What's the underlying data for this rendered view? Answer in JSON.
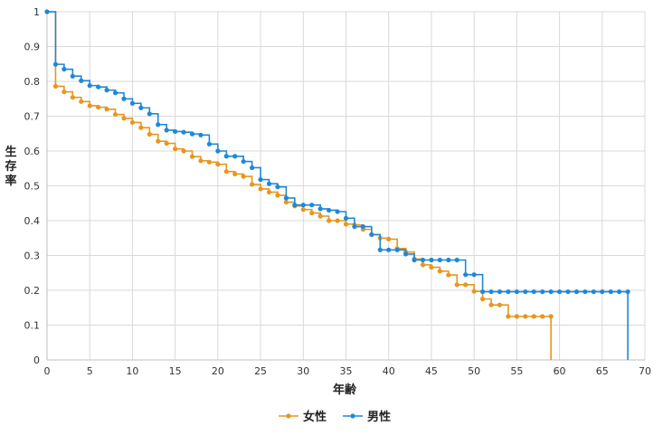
{
  "chart_data": {
    "type": "line",
    "title": "",
    "xlabel": "年齢",
    "ylabel": "生存率",
    "xlim": [
      0,
      70
    ],
    "ylim": [
      0,
      1
    ],
    "x_ticks": [
      "0",
      "5",
      "10",
      "15",
      "20",
      "25",
      "30",
      "35",
      "40",
      "45",
      "50",
      "55",
      "60",
      "65",
      "70"
    ],
    "y_ticks": [
      "0",
      "0.1",
      "0.2",
      "0.3",
      "0.4",
      "0.5",
      "0.6",
      "0.7",
      "0.8",
      "0.9",
      "1"
    ],
    "grid": true,
    "legend_position": "bottom",
    "series": [
      {
        "name": "女性",
        "color": "#E8961E",
        "x": [
          0,
          1,
          2,
          3,
          4,
          5,
          6,
          7,
          8,
          9,
          10,
          11,
          12,
          13,
          14,
          15,
          16,
          17,
          18,
          19,
          20,
          21,
          22,
          23,
          24,
          25,
          26,
          27,
          28,
          29,
          30,
          31,
          32,
          33,
          34,
          35,
          36,
          37,
          38,
          39,
          40,
          41,
          42,
          43,
          44,
          45,
          46,
          47,
          48,
          49,
          50,
          51,
          52,
          53,
          54,
          55,
          56,
          57,
          58,
          59
        ],
        "y": [
          1,
          0.786,
          0.77,
          0.754,
          0.742,
          0.73,
          0.726,
          0.72,
          0.705,
          0.694,
          0.682,
          0.667,
          0.648,
          0.628,
          0.622,
          0.606,
          0.6,
          0.584,
          0.572,
          0.568,
          0.562,
          0.541,
          0.534,
          0.527,
          0.504,
          0.491,
          0.482,
          0.473,
          0.453,
          0.442,
          0.432,
          0.422,
          0.413,
          0.4,
          0.4,
          0.39,
          0.388,
          0.375,
          0.36,
          0.35,
          0.347,
          0.32,
          0.31,
          0.29,
          0.273,
          0.266,
          0.255,
          0.244,
          0.216,
          0.216,
          0.197,
          0.175,
          0.158,
          0.158,
          0.125,
          0.125,
          0.125,
          0.125,
          0.125,
          0.125
        ],
        "drop_to_zero_at": 59
      },
      {
        "name": "男性",
        "color": "#1E88D8",
        "x": [
          0,
          1,
          2,
          3,
          4,
          5,
          6,
          7,
          8,
          9,
          10,
          11,
          12,
          13,
          14,
          15,
          16,
          17,
          18,
          19,
          20,
          21,
          22,
          23,
          24,
          25,
          26,
          27,
          28,
          29,
          30,
          31,
          32,
          33,
          34,
          35,
          36,
          37,
          38,
          39,
          40,
          41,
          42,
          43,
          44,
          45,
          46,
          47,
          48,
          49,
          50,
          51,
          52,
          53,
          54,
          55,
          56,
          57,
          58,
          59,
          60,
          61,
          62,
          63,
          64,
          65,
          66,
          67,
          68
        ],
        "y": [
          1,
          0.849,
          0.835,
          0.815,
          0.802,
          0.788,
          0.784,
          0.775,
          0.767,
          0.75,
          0.737,
          0.724,
          0.707,
          0.676,
          0.66,
          0.656,
          0.654,
          0.649,
          0.646,
          0.62,
          0.6,
          0.585,
          0.585,
          0.57,
          0.552,
          0.518,
          0.506,
          0.497,
          0.465,
          0.445,
          0.445,
          0.445,
          0.434,
          0.43,
          0.426,
          0.407,
          0.383,
          0.383,
          0.36,
          0.316,
          0.316,
          0.316,
          0.304,
          0.287,
          0.287,
          0.287,
          0.287,
          0.287,
          0.287,
          0.245,
          0.245,
          0.196,
          0.196,
          0.196,
          0.196,
          0.196,
          0.196,
          0.196,
          0.196,
          0.196,
          0.196,
          0.196,
          0.196,
          0.196,
          0.196,
          0.196,
          0.196,
          0.196,
          0.196
        ],
        "drop_to_zero_at": 68
      }
    ]
  }
}
